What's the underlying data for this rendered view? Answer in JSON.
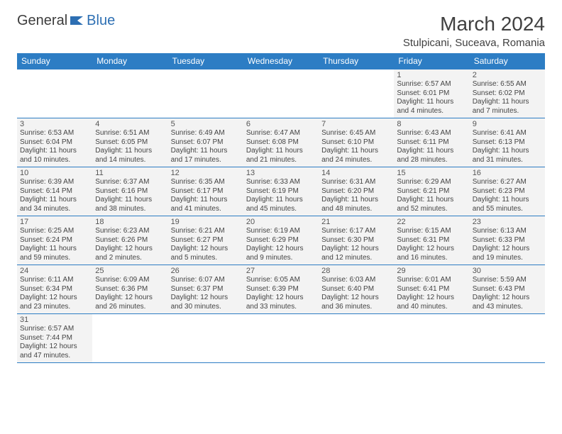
{
  "logo": {
    "text1": "General",
    "text2": "Blue",
    "color1": "#3c3c3c",
    "color2": "#2d6fb3",
    "iconFill": "#2d6fb3"
  },
  "header": {
    "title": "March 2024",
    "location": "Stulpicani, Suceava, Romania"
  },
  "style": {
    "headerBg": "#2d7dc4",
    "headerText": "#ffffff",
    "cellBg": "#f3f3f3",
    "borderColor": "#2d7dc4",
    "dayNumFontSize": 11,
    "infoFontSize": 10,
    "titleFontSize": 28,
    "locationFontSize": 15
  },
  "weekdays": [
    "Sunday",
    "Monday",
    "Tuesday",
    "Wednesday",
    "Thursday",
    "Friday",
    "Saturday"
  ],
  "cells": [
    {
      "empty": true
    },
    {
      "empty": true
    },
    {
      "empty": true
    },
    {
      "empty": true
    },
    {
      "empty": true
    },
    {
      "n": "1",
      "sr": "6:57 AM",
      "ss": "6:01 PM",
      "dl": "11 hours and 4 minutes."
    },
    {
      "n": "2",
      "sr": "6:55 AM",
      "ss": "6:02 PM",
      "dl": "11 hours and 7 minutes."
    },
    {
      "n": "3",
      "sr": "6:53 AM",
      "ss": "6:04 PM",
      "dl": "11 hours and 10 minutes."
    },
    {
      "n": "4",
      "sr": "6:51 AM",
      "ss": "6:05 PM",
      "dl": "11 hours and 14 minutes."
    },
    {
      "n": "5",
      "sr": "6:49 AM",
      "ss": "6:07 PM",
      "dl": "11 hours and 17 minutes."
    },
    {
      "n": "6",
      "sr": "6:47 AM",
      "ss": "6:08 PM",
      "dl": "11 hours and 21 minutes."
    },
    {
      "n": "7",
      "sr": "6:45 AM",
      "ss": "6:10 PM",
      "dl": "11 hours and 24 minutes."
    },
    {
      "n": "8",
      "sr": "6:43 AM",
      "ss": "6:11 PM",
      "dl": "11 hours and 28 minutes."
    },
    {
      "n": "9",
      "sr": "6:41 AM",
      "ss": "6:13 PM",
      "dl": "11 hours and 31 minutes."
    },
    {
      "n": "10",
      "sr": "6:39 AM",
      "ss": "6:14 PM",
      "dl": "11 hours and 34 minutes."
    },
    {
      "n": "11",
      "sr": "6:37 AM",
      "ss": "6:16 PM",
      "dl": "11 hours and 38 minutes."
    },
    {
      "n": "12",
      "sr": "6:35 AM",
      "ss": "6:17 PM",
      "dl": "11 hours and 41 minutes."
    },
    {
      "n": "13",
      "sr": "6:33 AM",
      "ss": "6:19 PM",
      "dl": "11 hours and 45 minutes."
    },
    {
      "n": "14",
      "sr": "6:31 AM",
      "ss": "6:20 PM",
      "dl": "11 hours and 48 minutes."
    },
    {
      "n": "15",
      "sr": "6:29 AM",
      "ss": "6:21 PM",
      "dl": "11 hours and 52 minutes."
    },
    {
      "n": "16",
      "sr": "6:27 AM",
      "ss": "6:23 PM",
      "dl": "11 hours and 55 minutes."
    },
    {
      "n": "17",
      "sr": "6:25 AM",
      "ss": "6:24 PM",
      "dl": "11 hours and 59 minutes."
    },
    {
      "n": "18",
      "sr": "6:23 AM",
      "ss": "6:26 PM",
      "dl": "12 hours and 2 minutes."
    },
    {
      "n": "19",
      "sr": "6:21 AM",
      "ss": "6:27 PM",
      "dl": "12 hours and 5 minutes."
    },
    {
      "n": "20",
      "sr": "6:19 AM",
      "ss": "6:29 PM",
      "dl": "12 hours and 9 minutes."
    },
    {
      "n": "21",
      "sr": "6:17 AM",
      "ss": "6:30 PM",
      "dl": "12 hours and 12 minutes."
    },
    {
      "n": "22",
      "sr": "6:15 AM",
      "ss": "6:31 PM",
      "dl": "12 hours and 16 minutes."
    },
    {
      "n": "23",
      "sr": "6:13 AM",
      "ss": "6:33 PM",
      "dl": "12 hours and 19 minutes."
    },
    {
      "n": "24",
      "sr": "6:11 AM",
      "ss": "6:34 PM",
      "dl": "12 hours and 23 minutes."
    },
    {
      "n": "25",
      "sr": "6:09 AM",
      "ss": "6:36 PM",
      "dl": "12 hours and 26 minutes."
    },
    {
      "n": "26",
      "sr": "6:07 AM",
      "ss": "6:37 PM",
      "dl": "12 hours and 30 minutes."
    },
    {
      "n": "27",
      "sr": "6:05 AM",
      "ss": "6:39 PM",
      "dl": "12 hours and 33 minutes."
    },
    {
      "n": "28",
      "sr": "6:03 AM",
      "ss": "6:40 PM",
      "dl": "12 hours and 36 minutes."
    },
    {
      "n": "29",
      "sr": "6:01 AM",
      "ss": "6:41 PM",
      "dl": "12 hours and 40 minutes."
    },
    {
      "n": "30",
      "sr": "5:59 AM",
      "ss": "6:43 PM",
      "dl": "12 hours and 43 minutes."
    },
    {
      "n": "31",
      "sr": "6:57 AM",
      "ss": "7:44 PM",
      "dl": "12 hours and 47 minutes."
    },
    {
      "empty": true
    },
    {
      "empty": true
    },
    {
      "empty": true
    },
    {
      "empty": true
    },
    {
      "empty": true
    },
    {
      "empty": true
    }
  ],
  "labels": {
    "sunrise": "Sunrise: ",
    "sunset": "Sunset: ",
    "daylight": "Daylight: "
  }
}
